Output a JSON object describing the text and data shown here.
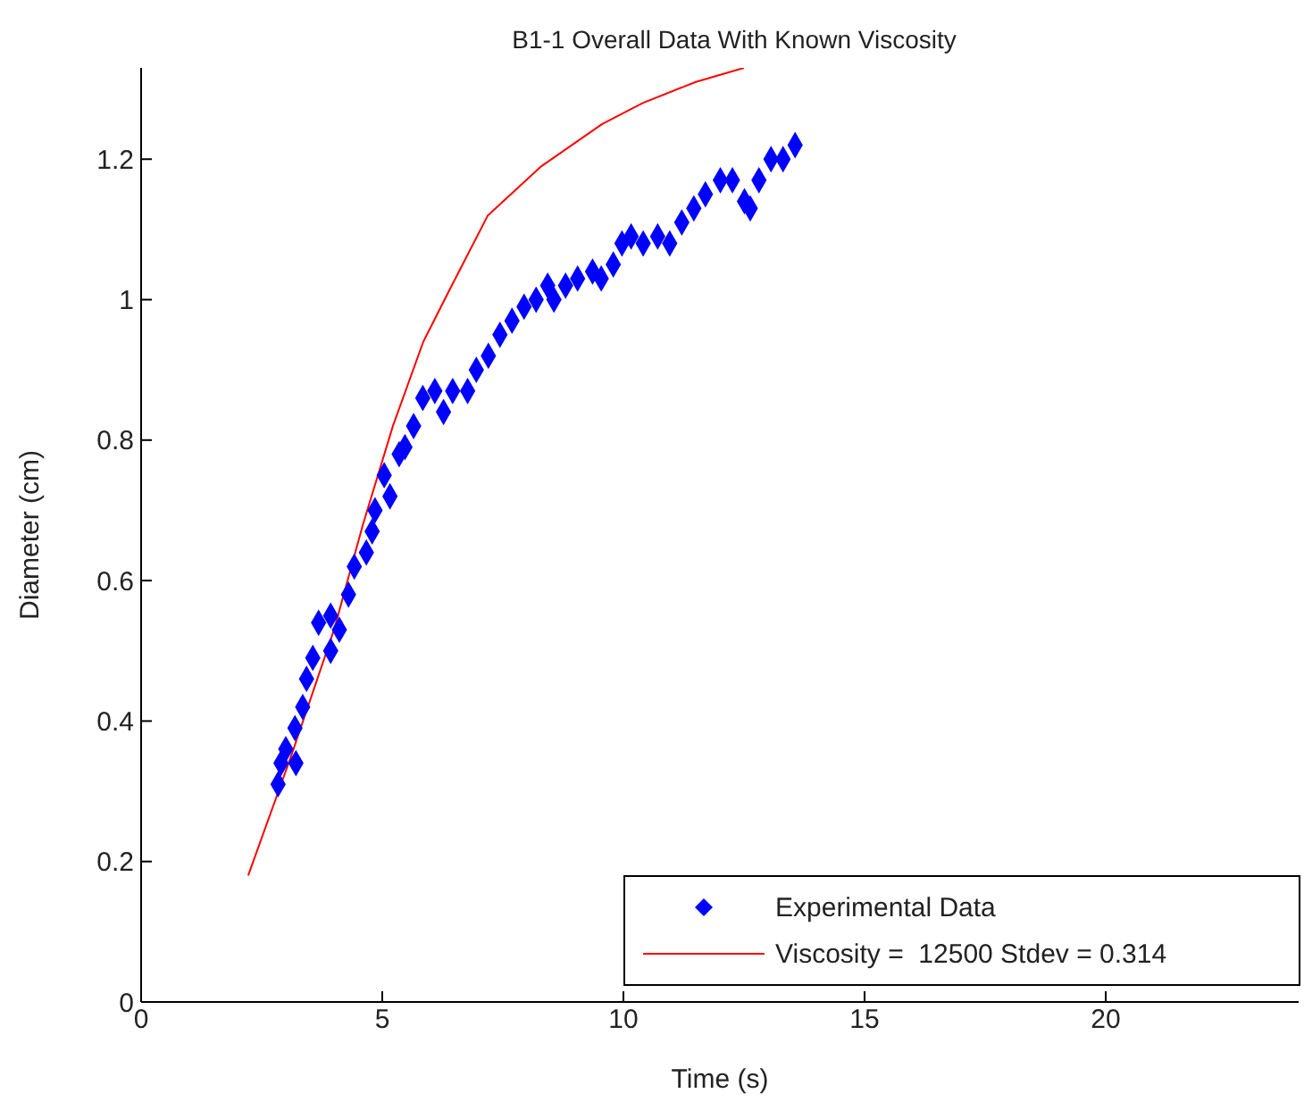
{
  "chart_data": {
    "type": "scatter",
    "title": "B1-1 Overall Data With Known Viscosity",
    "xlabel": "Time (s)",
    "ylabel": "Diameter (cm)",
    "xlim": [
      0,
      24
    ],
    "xticks": [
      0,
      5,
      10,
      15,
      20
    ],
    "ylim": [
      0,
      1.33
    ],
    "yticks": [
      0,
      0.2,
      0.4,
      0.6,
      0.8,
      1,
      1.2
    ],
    "grid": false,
    "legend": "bottom right",
    "series": [
      {
        "name": "Experimental Data",
        "marker": "diamond",
        "color": "#0000ff",
        "x": [
          2.84,
          2.9,
          3.0,
          3.19,
          3.21,
          3.35,
          3.43,
          3.56,
          3.68,
          3.93,
          3.93,
          4.11,
          4.3,
          4.42,
          4.67,
          4.79,
          4.85,
          5.04,
          5.16,
          5.35,
          5.47,
          5.65,
          5.84,
          6.09,
          6.27,
          6.46,
          6.77,
          6.95,
          7.2,
          7.44,
          7.69,
          7.94,
          8.19,
          8.43,
          8.56,
          8.8,
          9.05,
          9.36,
          9.54,
          9.79,
          9.97,
          10.16,
          10.41,
          10.71,
          10.96,
          11.21,
          11.46,
          11.7,
          12.01,
          12.26,
          12.51,
          12.63,
          12.81,
          13.06,
          13.31,
          13.56
        ],
        "values": [
          0.31,
          0.34,
          0.36,
          0.39,
          0.34,
          0.42,
          0.46,
          0.49,
          0.54,
          0.55,
          0.5,
          0.53,
          0.58,
          0.62,
          0.64,
          0.67,
          0.7,
          0.75,
          0.72,
          0.78,
          0.79,
          0.82,
          0.86,
          0.87,
          0.84,
          0.87,
          0.87,
          0.9,
          0.92,
          0.95,
          0.97,
          0.99,
          1.0,
          1.02,
          1.0,
          1.02,
          1.03,
          1.04,
          1.03,
          1.05,
          1.08,
          1.09,
          1.08,
          1.09,
          1.08,
          1.11,
          1.13,
          1.15,
          1.17,
          1.17,
          1.14,
          1.13,
          1.17,
          1.2,
          1.2,
          1.22
        ]
      },
      {
        "name": "Viscosity =  12500 Stdev = 0.314",
        "type": "line",
        "marker": "none",
        "line_style": "solid",
        "color": "#ff0000",
        "x": [
          2.22,
          3.11,
          4.0,
          4.6,
          5.22,
          5.85,
          6.44,
          7.19,
          8.3,
          9.56,
          10.4,
          11.5,
          12.5
        ],
        "values": [
          0.18,
          0.35,
          0.53,
          0.68,
          0.82,
          0.94,
          1.02,
          1.12,
          1.19,
          1.25,
          1.28,
          1.31,
          1.33
        ]
      }
    ]
  }
}
